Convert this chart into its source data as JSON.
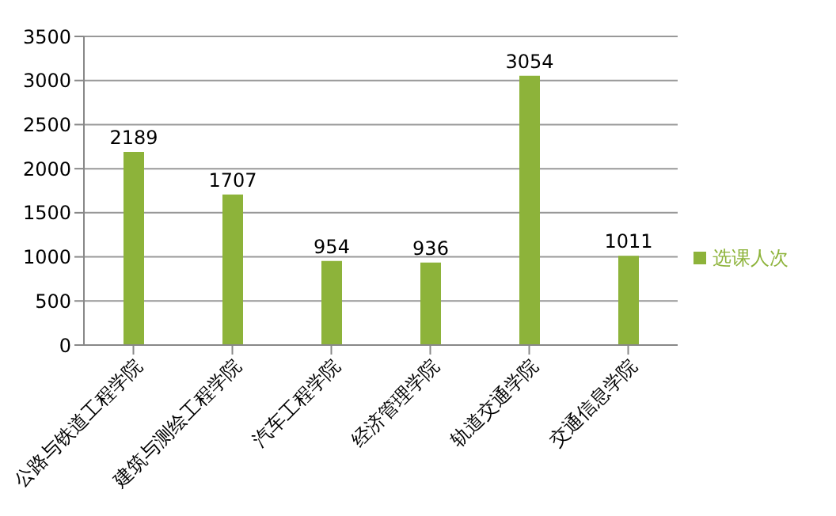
{
  "chart_data": {
    "type": "bar",
    "categories": [
      "公路与铁道工程学院",
      "建筑与测绘工程学院",
      "汽车工程学院",
      "经济管理学院",
      "轨道交通学院",
      "交通信息学院"
    ],
    "series": [
      {
        "name": "选课人次",
        "color": "#8db33a",
        "values": [
          2189,
          1707,
          954,
          936,
          3054,
          1011
        ]
      }
    ],
    "ylim": [
      0,
      3500
    ],
    "yticks": [
      0,
      500,
      1000,
      1500,
      2000,
      2500,
      3000,
      3500
    ],
    "grid": "y",
    "legend": "right",
    "data_labels": true
  }
}
